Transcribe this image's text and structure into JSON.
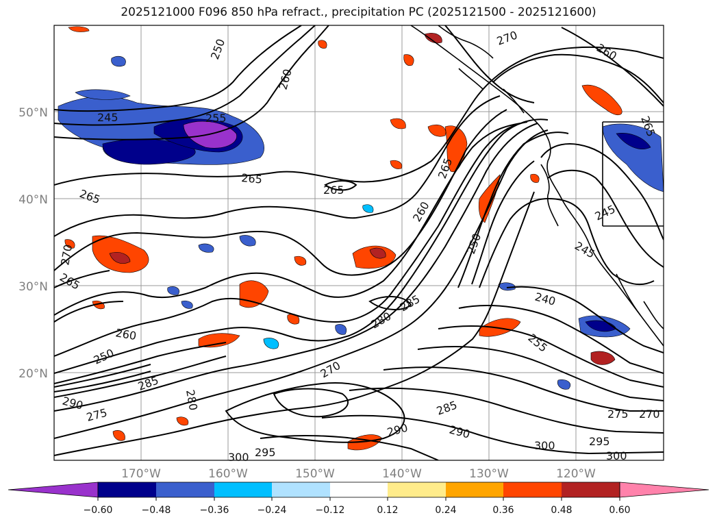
{
  "title": "2025121000 F096 850 hPa refract., precipitation PC (2025121500 - 2025121600)",
  "map": {
    "lat_labels": [
      "50°N",
      "40°N",
      "30°N",
      "20°N"
    ],
    "lon_labels": [
      "170°W",
      "160°W",
      "150°W",
      "140°W",
      "130°W",
      "120°W"
    ],
    "contour_labels": [
      {
        "text": "245"
      },
      {
        "text": "255"
      },
      {
        "text": "265"
      },
      {
        "text": "265"
      },
      {
        "text": "265"
      },
      {
        "text": "250"
      },
      {
        "text": "260"
      },
      {
        "text": "270"
      },
      {
        "text": "260"
      },
      {
        "text": "265"
      },
      {
        "text": "260"
      },
      {
        "text": "250"
      },
      {
        "text": "245"
      },
      {
        "text": "245"
      },
      {
        "text": "240"
      },
      {
        "text": "255"
      },
      {
        "text": "285"
      },
      {
        "text": "280"
      },
      {
        "text": "270"
      },
      {
        "text": "285"
      },
      {
        "text": "290"
      },
      {
        "text": "290"
      },
      {
        "text": "275"
      },
      {
        "text": "270"
      },
      {
        "text": "295"
      },
      {
        "text": "300"
      },
      {
        "text": "300"
      },
      {
        "text": "295"
      },
      {
        "text": "300"
      },
      {
        "text": "275"
      },
      {
        "text": "290"
      },
      {
        "text": "285"
      },
      {
        "text": "280"
      },
      {
        "text": "260"
      },
      {
        "text": "265"
      },
      {
        "text": "270"
      },
      {
        "text": "265"
      },
      {
        "text": "250"
      }
    ]
  },
  "colorbar": {
    "ticks": [
      "−0.60",
      "−0.48",
      "−0.36",
      "−0.24",
      "−0.12",
      "0.12",
      "0.24",
      "0.36",
      "0.48",
      "0.60"
    ],
    "colors": [
      "#9932cc",
      "#00008b",
      "#3a5fcd",
      "#00bfff",
      "#b0e2ff",
      "#ffffff",
      "#ffec8b",
      "#ffa500",
      "#ff4500",
      "#b22222",
      "#ff82ab"
    ]
  }
}
